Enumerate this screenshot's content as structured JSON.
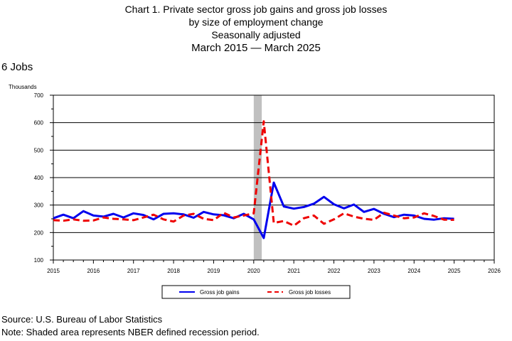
{
  "title_lines": [
    "Chart 1. Private sector gross job gains and gross job losses",
    "by size of employment change",
    "Seasonally adjusted",
    "March 2015 — March 2025"
  ],
  "size_label": "6 Jobs",
  "units": "Thousands",
  "source": "Source: U.S. Bureau of Labor Statistics",
  "note": "Note: Shaded area represents NBER defined recession period.",
  "colors": {
    "gains": "#0000ee",
    "losses": "#ee0000",
    "recession": "#c0c0c0"
  },
  "chart_data": {
    "type": "line",
    "ylabel": "Thousands",
    "ylim": [
      100,
      700
    ],
    "yticks": [
      100,
      200,
      300,
      400,
      500,
      600,
      700
    ],
    "xlim": [
      2015,
      2026
    ],
    "xticks": [
      "2015",
      "2016",
      "2017",
      "2018",
      "2019",
      "2020",
      "2021",
      "2022",
      "2023",
      "2024",
      "2025",
      "2026"
    ],
    "grid": true,
    "legend_position": "bottom",
    "recession": [
      2020.0,
      2020.2
    ],
    "series": [
      {
        "name": "Gross job gains",
        "style": "solid",
        "x": [
          2015.0,
          2015.25,
          2015.5,
          2015.75,
          2016.0,
          2016.25,
          2016.5,
          2016.75,
          2017.0,
          2017.25,
          2017.5,
          2017.75,
          2018.0,
          2018.25,
          2018.5,
          2018.75,
          2019.0,
          2019.25,
          2019.5,
          2019.75,
          2020.0,
          2020.25,
          2020.5,
          2020.75,
          2021.0,
          2021.25,
          2021.5,
          2021.75,
          2022.0,
          2022.25,
          2022.5,
          2022.75,
          2023.0,
          2023.25,
          2023.5,
          2023.75,
          2024.0,
          2024.25,
          2024.5,
          2024.75,
          2025.0
        ],
        "values": [
          252,
          265,
          252,
          278,
          262,
          258,
          268,
          255,
          270,
          264,
          248,
          268,
          270,
          266,
          254,
          275,
          266,
          263,
          252,
          268,
          248,
          180,
          382,
          295,
          287,
          293,
          305,
          330,
          303,
          288,
          302,
          275,
          286,
          268,
          256,
          265,
          262,
          250,
          247,
          252,
          250
        ]
      },
      {
        "name": "Gross job losses",
        "style": "dashed",
        "x": [
          2015.0,
          2015.25,
          2015.5,
          2015.75,
          2016.0,
          2016.25,
          2016.5,
          2016.75,
          2017.0,
          2017.25,
          2017.5,
          2017.75,
          2018.0,
          2018.25,
          2018.5,
          2018.75,
          2019.0,
          2019.25,
          2019.5,
          2019.75,
          2020.0,
          2020.25,
          2020.5,
          2020.75,
          2021.0,
          2021.25,
          2021.5,
          2021.75,
          2022.0,
          2022.25,
          2022.5,
          2022.75,
          2023.0,
          2023.25,
          2023.5,
          2023.75,
          2024.0,
          2024.25,
          2024.5,
          2024.75,
          2025.0
        ],
        "values": [
          245,
          243,
          248,
          243,
          244,
          255,
          250,
          248,
          245,
          255,
          265,
          248,
          240,
          262,
          268,
          250,
          245,
          272,
          255,
          262,
          270,
          605,
          235,
          242,
          225,
          252,
          262,
          232,
          248,
          270,
          258,
          250,
          246,
          272,
          262,
          252,
          255,
          270,
          260,
          247,
          246
        ]
      }
    ]
  }
}
